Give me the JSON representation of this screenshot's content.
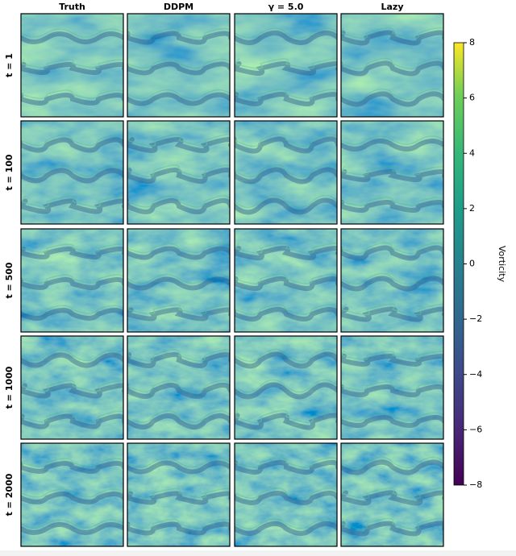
{
  "columns": [
    "Truth",
    "DDPM",
    "γ = 5.0",
    "Lazy"
  ],
  "rows": [
    "t = 1",
    "t = 100",
    "t = 500",
    "t = 1000",
    "t = 2000"
  ],
  "colorbar": {
    "label": "Vorticity",
    "lim": [
      -8,
      8
    ],
    "ticks": [
      {
        "value": -8,
        "label": "−8"
      },
      {
        "value": -6,
        "label": "−6"
      },
      {
        "value": -4,
        "label": "−4"
      },
      {
        "value": -2,
        "label": "−2"
      },
      0,
      2,
      4,
      6,
      8
    ]
  }
}
